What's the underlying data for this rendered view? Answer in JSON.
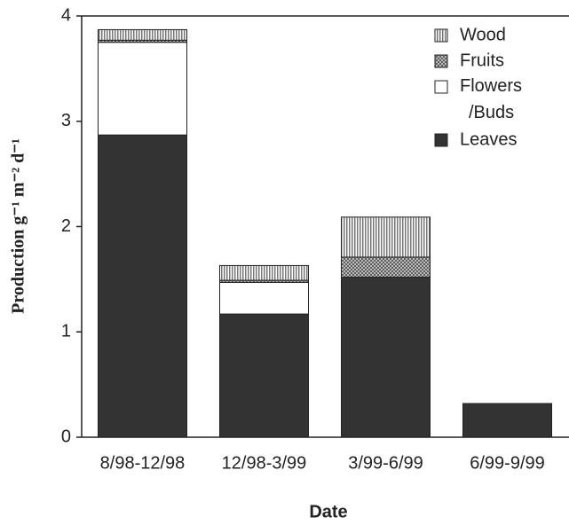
{
  "chart_data": {
    "type": "stacked_bar",
    "x_label": "Date",
    "y_label": "Production g⁻¹ m⁻² d⁻¹",
    "categories": [
      "8/98-12/98",
      "12/98-3/99",
      "3/99-6/99",
      "6/99-9/99"
    ],
    "series": [
      {
        "name": "Leaves",
        "color": "#333333",
        "values": [
          2.87,
          1.17,
          1.52,
          0.32
        ]
      },
      {
        "name": "Flowers /Buds",
        "color": "#ffffff",
        "values": [
          0.88,
          0.3,
          0,
          0
        ]
      },
      {
        "name": "Fruits",
        "color": "#b0b0b0",
        "pattern": "crosshatch",
        "values": [
          0.02,
          0.02,
          0.19,
          0
        ]
      },
      {
        "name": "Wood",
        "color": "#c8c8c8",
        "pattern": "vertical",
        "values": [
          0.1,
          0.14,
          0.38,
          0
        ]
      }
    ],
    "ylim": [
      0,
      4
    ],
    "yticks": [
      0,
      1,
      2,
      3,
      4
    ]
  }
}
